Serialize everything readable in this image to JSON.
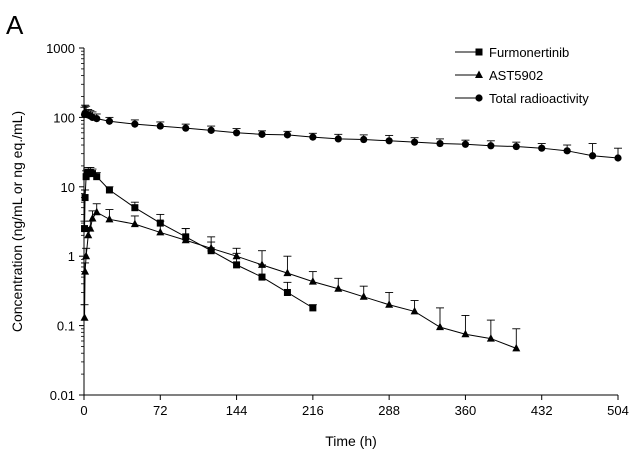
{
  "panel_label": "A",
  "chart_data": {
    "type": "line",
    "title": "",
    "xlabel": "Time (h)",
    "ylabel": "Concentration  (ng/mL or ng eq./mL)",
    "y_scale": "log",
    "xlim": [
      0,
      504
    ],
    "ylim": [
      0.01,
      1000
    ],
    "x_ticks": [
      0,
      72,
      144,
      216,
      288,
      360,
      432,
      504
    ],
    "y_ticks": [
      0.01,
      0.1,
      1,
      10,
      100,
      1000
    ],
    "y_tick_labels": [
      "0.01",
      "0.1",
      "1",
      "10",
      "100",
      "1000"
    ],
    "legend_position": "top-right",
    "error_bars": "upper only",
    "series": [
      {
        "name": "Furmonertinib",
        "marker": "square",
        "x": [
          0.5,
          1,
          2,
          3,
          4,
          6,
          8,
          12,
          24,
          48,
          72,
          96,
          120,
          144,
          168,
          192,
          216
        ],
        "y": [
          2.5,
          7,
          14,
          15.5,
          16,
          16,
          15.5,
          14,
          9,
          5,
          3,
          1.9,
          1.2,
          0.75,
          0.5,
          0.3,
          0.18
        ],
        "err_upper": [
          3.2,
          9,
          17,
          18,
          19,
          19,
          18,
          16,
          10,
          6,
          4,
          2.5,
          1.6,
          1.1,
          0.75,
          0.42,
          0.2
        ]
      },
      {
        "name": "AST5902",
        "marker": "triangle",
        "x": [
          0.5,
          1,
          2,
          4,
          6,
          8,
          12,
          24,
          48,
          72,
          96,
          120,
          144,
          168,
          192,
          216,
          240,
          264,
          288,
          312,
          336,
          360,
          384,
          408
        ],
        "y": [
          0.13,
          0.6,
          1,
          2,
          2.5,
          3.5,
          4.3,
          3.4,
          2.9,
          2.2,
          1.7,
          1.3,
          1,
          0.75,
          0.57,
          0.43,
          0.34,
          0.26,
          0.2,
          0.16,
          0.095,
          0.075,
          0.065,
          0.047
        ],
        "err_upper": [
          0.2,
          0.8,
          1.3,
          2.6,
          3.2,
          4.5,
          5.7,
          4.7,
          3.8,
          3.2,
          2.5,
          1.9,
          1.3,
          1.2,
          1,
          0.6,
          0.48,
          0.37,
          0.3,
          0.23,
          0.18,
          0.14,
          0.12,
          0.09
        ]
      },
      {
        "name": "Total radioactivity",
        "marker": "circle",
        "x": [
          0.5,
          1,
          2,
          4,
          6,
          8,
          12,
          24,
          48,
          72,
          96,
          120,
          144,
          168,
          192,
          216,
          240,
          264,
          288,
          312,
          336,
          360,
          384,
          408,
          432,
          456,
          480,
          504
        ],
        "y": [
          110,
          115,
          112,
          108,
          105,
          100,
          96,
          88,
          80,
          75,
          70,
          65,
          60,
          57,
          56,
          52,
          49,
          48,
          46,
          44,
          42,
          41,
          39,
          38,
          36,
          33,
          28,
          26
        ],
        "err_upper": [
          140,
          150,
          145,
          130,
          125,
          120,
          112,
          100,
          92,
          86,
          80,
          75,
          69,
          64,
          63,
          59,
          57,
          56,
          55,
          51,
          49,
          47,
          46,
          44,
          42,
          40,
          42,
          36
        ]
      }
    ]
  }
}
